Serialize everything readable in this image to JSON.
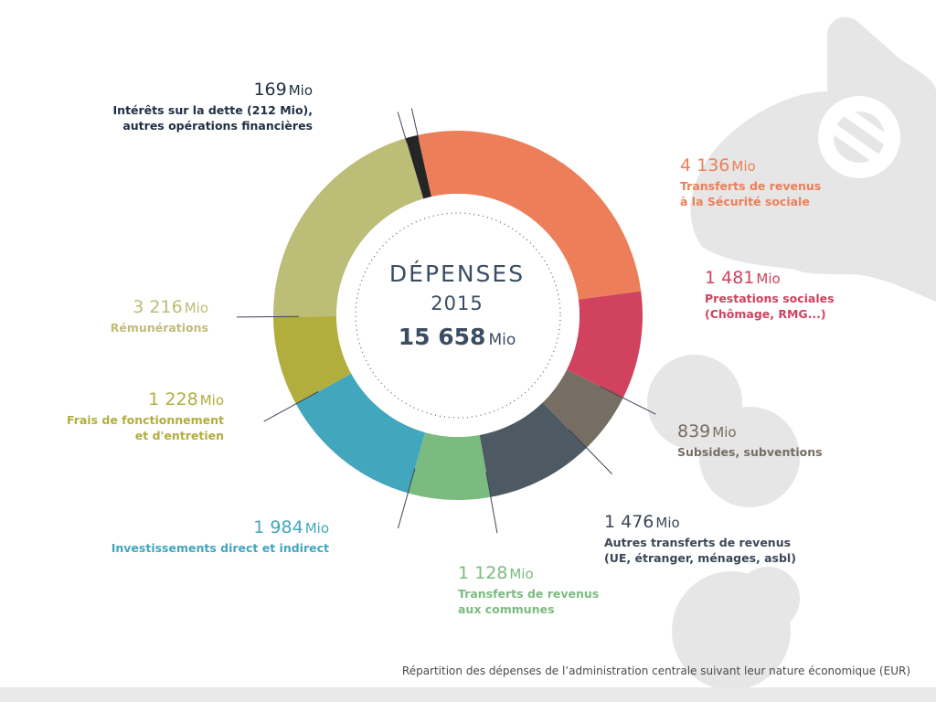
{
  "chart_data": {
    "type": "pie",
    "title": "DÉPENSES",
    "year": "2015",
    "total": {
      "value": "15 658",
      "unit": "Mio"
    },
    "unit": "Mio",
    "slices": [
      {
        "value": 4136,
        "value_text": "4 136",
        "label_lines": [
          "Transferts de revenus",
          "à la Sécurité sociale"
        ],
        "color": "#ec7f59"
      },
      {
        "value": 1481,
        "value_text": "1 481",
        "label_lines": [
          "Prestations sociales",
          "(Chômage, RMG...)"
        ],
        "color": "#d1425f"
      },
      {
        "value": 839,
        "value_text": "839",
        "label_lines": [
          "Subsides, subventions"
        ],
        "color": "#766d63"
      },
      {
        "value": 1476,
        "value_text": "1 476",
        "label_lines": [
          "Autres transferts de revenus",
          "(UE, étranger, ménages, asbl)"
        ],
        "color": "#4e5a63"
      },
      {
        "value": 1128,
        "value_text": "1 128",
        "label_lines": [
          "Transferts de revenus",
          "aux communes"
        ],
        "color": "#7bbb80"
      },
      {
        "value": 1984,
        "value_text": "1 984",
        "label_lines": [
          "Investissements direct et indirect"
        ],
        "color": "#42a6bd"
      },
      {
        "value": 1228,
        "value_text": "1 228",
        "label_lines": [
          "Frais de fonctionnement",
          "et d'entretien"
        ],
        "color": "#b1ae3d"
      },
      {
        "value": 3216,
        "value_text": "3 216",
        "label_lines": [
          "Rémunérations"
        ],
        "color": "#bcbd77"
      },
      {
        "value": 169,
        "value_text": "169",
        "label_lines": [
          "Intérêts sur la dette (212 Mio),",
          "autres opérations financières"
        ],
        "color": "#252525"
      }
    ],
    "label_text_colors": [
      "#ec7f59",
      "#d1425f",
      "#766d63",
      "#3b4656",
      "#7bbb80",
      "#42a6bd",
      "#b1ae3d",
      "#bcbd77",
      "#1f2f44"
    ]
  },
  "caption": "Répartition des dépenses de l’administration centrale suivant leur nature économique (EUR)"
}
